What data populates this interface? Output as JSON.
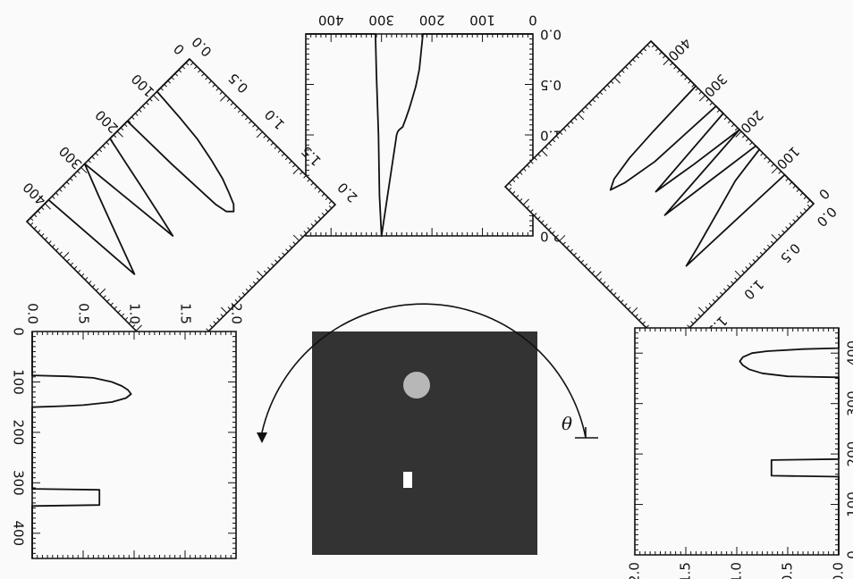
{
  "colors": {
    "background": "#fafafa",
    "ink": "#111111",
    "phantom_background": "#333333",
    "disk": "#b7b7b7",
    "rectangle": "#ffffff"
  },
  "phantom": {
    "description_free": true,
    "objects": [
      "disk",
      "rectangle"
    ]
  },
  "rotation": {
    "symbol": "θ",
    "arrow_icon": "curved-arrow-icon"
  },
  "chart_data": [
    {
      "id": "projection-top",
      "type": "line",
      "xticks": [
        "0",
        "100",
        "200",
        "300",
        "400"
      ],
      "yticks": [
        "0.0",
        "0.5",
        "1.0",
        "1.5",
        "2.0"
      ],
      "xlim": [
        0,
        450
      ],
      "ylim": [
        0,
        2.0
      ],
      "series": [
        {
          "x": [
            0,
            218,
            225,
            232,
            239,
            245,
            252,
            258,
            265,
            268,
            270,
            300,
            304,
            306,
            310,
            312,
            450
          ],
          "y": [
            0,
            0,
            0.35,
            0.52,
            0.64,
            0.74,
            0.84,
            0.92,
            0.95,
            0.97,
            1.0,
            2.0,
            1.6,
            1.0,
            0.4,
            0,
            0
          ]
        }
      ]
    },
    {
      "id": "projection-upper-left",
      "type": "line",
      "xticks": [
        "0",
        "100",
        "200",
        "300",
        "400"
      ],
      "yticks": [
        "0.0",
        "0.5",
        "1.0",
        "1.5",
        "2.0"
      ],
      "xlim": [
        0,
        450
      ],
      "ylim": [
        0,
        2.0
      ],
      "series": [
        {
          "x": [
            0,
            90,
            95,
            100,
            110,
            120,
            130,
            140,
            150,
            160,
            165,
            170,
            172,
            220,
            232,
            244,
            256,
            268,
            290,
            302,
            314,
            326,
            338,
            350,
            362,
            374,
            390,
            450
          ],
          "y": [
            0,
            0,
            0.35,
            0.6,
            0.85,
            1.05,
            1.18,
            1.3,
            1.35,
            1.3,
            1.18,
            0.6,
            0,
            0,
            0.28,
            0.56,
            0.84,
            1.1,
            0,
            0.15,
            0.3,
            0.46,
            0.62,
            0.78,
            0.94,
            1.1,
            0,
            0
          ]
        }
      ]
    },
    {
      "id": "projection-upper-right",
      "type": "line",
      "xticks": [
        "0",
        "100",
        "200",
        "300",
        "400"
      ],
      "yticks": [
        "0.0",
        "0.5",
        "1.0",
        "1.5",
        "2.0"
      ],
      "xlim": [
        0,
        450
      ],
      "ylim": [
        0,
        2.0
      ],
      "series": [
        {
          "x": [
            0,
            80,
            90,
            100,
            110,
            120,
            130,
            140,
            145,
            150,
            160,
            175,
            190,
            205,
            220,
            235,
            250,
            270,
            278,
            290,
            300,
            310,
            318,
            322,
            326,
            450
          ],
          "y": [
            0,
            0,
            1.3,
            1.1,
            0.92,
            0.74,
            0.56,
            0.38,
            0.2,
            0,
            0,
            0.55,
            1.1,
            0,
            0.55,
            1.0,
            0,
            0,
            0.8,
            1.15,
            1.3,
            1.2,
            0.95,
            0.6,
            0,
            0
          ]
        }
      ]
    },
    {
      "id": "projection-lower-left",
      "type": "line",
      "xticks": [
        "0",
        "100",
        "200",
        "300",
        "400"
      ],
      "yticks": [
        "0.0",
        "0.5",
        "1.0",
        "1.5",
        "2.0"
      ],
      "xlim": [
        0,
        450
      ],
      "ylim": [
        0,
        2.0
      ],
      "series": [
        {
          "x": [
            0,
            87,
            89,
            92,
            100,
            108,
            116,
            124,
            132,
            140,
            146,
            148,
            150,
            312,
            314,
            344,
            346,
            450
          ],
          "y": [
            0,
            0,
            0.35,
            0.6,
            0.78,
            0.88,
            0.94,
            0.97,
            0.92,
            0.78,
            0.5,
            0.3,
            0,
            0,
            0.66,
            0.66,
            0,
            0
          ]
        }
      ]
    },
    {
      "id": "projection-lower-right",
      "type": "line",
      "xticks": [
        "0",
        "100",
        "200",
        "300",
        "400"
      ],
      "yticks": [
        "0.0",
        "0.5",
        "1.0",
        "1.5",
        "2.0"
      ],
      "xlim": [
        0,
        450
      ],
      "ylim": [
        0,
        2.0
      ],
      "series": [
        {
          "x": [
            0,
            155,
            157,
            188,
            190,
            352,
            354,
            360,
            368,
            376,
            384,
            392,
            400,
            404,
            408,
            410,
            450
          ],
          "y": [
            0,
            0,
            0.66,
            0.66,
            0,
            0,
            0.5,
            0.75,
            0.88,
            0.94,
            0.97,
            0.94,
            0.85,
            0.7,
            0.35,
            0,
            0
          ]
        }
      ]
    }
  ]
}
